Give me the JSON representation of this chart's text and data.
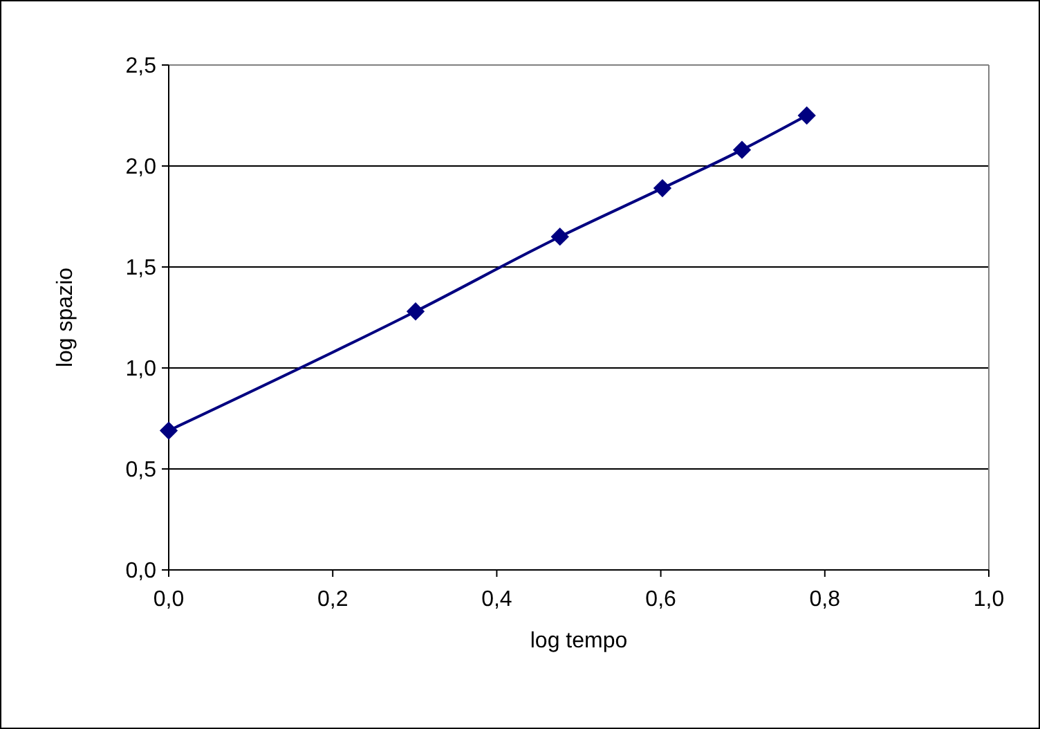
{
  "chart_data": {
    "type": "line",
    "xlabel": "log tempo",
    "ylabel": "log spazio",
    "x": [
      0,
      0.301,
      0.477,
      0.602,
      0.699,
      0.778
    ],
    "series": [
      {
        "color": "#000080",
        "values": [
          0.69,
          1.28,
          1.65,
          1.89,
          2.08,
          2.25
        ]
      }
    ],
    "xlim": [
      0,
      1
    ],
    "xticks": [
      {
        "value": 0,
        "label": "0,0"
      },
      {
        "value": 0.2,
        "label": "0,2"
      },
      {
        "value": 0.4,
        "label": "0,4"
      },
      {
        "value": 0.6,
        "label": "0,6"
      },
      {
        "value": 0.8,
        "label": "0,8"
      },
      {
        "value": 1,
        "label": "1,0"
      }
    ],
    "ylim": [
      0,
      2.5
    ],
    "yticks": [
      {
        "value": 0,
        "label": "0,0"
      },
      {
        "value": 0.5,
        "label": "0,5"
      },
      {
        "value": 1,
        "label": "1,0"
      },
      {
        "value": 1.5,
        "label": "1,5"
      },
      {
        "value": 2,
        "label": "2,0"
      },
      {
        "value": 2.5,
        "label": "2,5"
      }
    ],
    "grid": "y",
    "marker": "diamond",
    "line_style": "solid"
  }
}
